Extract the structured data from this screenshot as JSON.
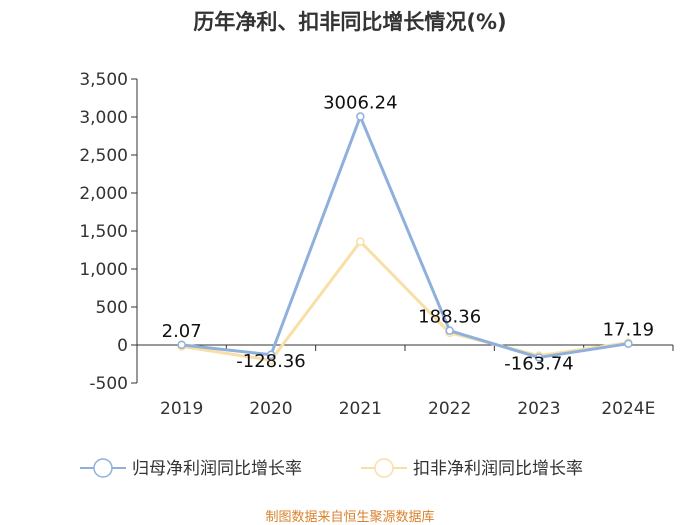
{
  "chart_data": {
    "type": "line",
    "title": "历年净利、扣非同比增长情况(%)",
    "categories": [
      "2019",
      "2020",
      "2021",
      "2022",
      "2023",
      "2024E"
    ],
    "ylim": [
      -500,
      3500
    ],
    "yticks": [
      -500,
      0,
      500,
      1000,
      1500,
      2000,
      2500,
      3000,
      3500
    ],
    "ytick_labels": [
      "-500",
      "0",
      "500",
      "1,000",
      "1,500",
      "2,000",
      "2,500",
      "3,000",
      "3,500"
    ],
    "grid": false,
    "legend_position": "bottom",
    "series": [
      {
        "name": "归母净利润同比增长率",
        "color": "#8fb0dc",
        "values": [
          2.07,
          -128.36,
          3006.24,
          188.36,
          -163.74,
          17.19
        ],
        "labels": [
          "2.07",
          "-128.36",
          "3006.24",
          "188.36",
          "-163.74",
          "17.19"
        ]
      },
      {
        "name": "扣非净利润同比增长率",
        "color": "#f8dfa6",
        "values": [
          -20,
          -200,
          1360,
          160,
          -140,
          30
        ]
      }
    ]
  },
  "source_text": "制图数据来自恒生聚源数据库"
}
